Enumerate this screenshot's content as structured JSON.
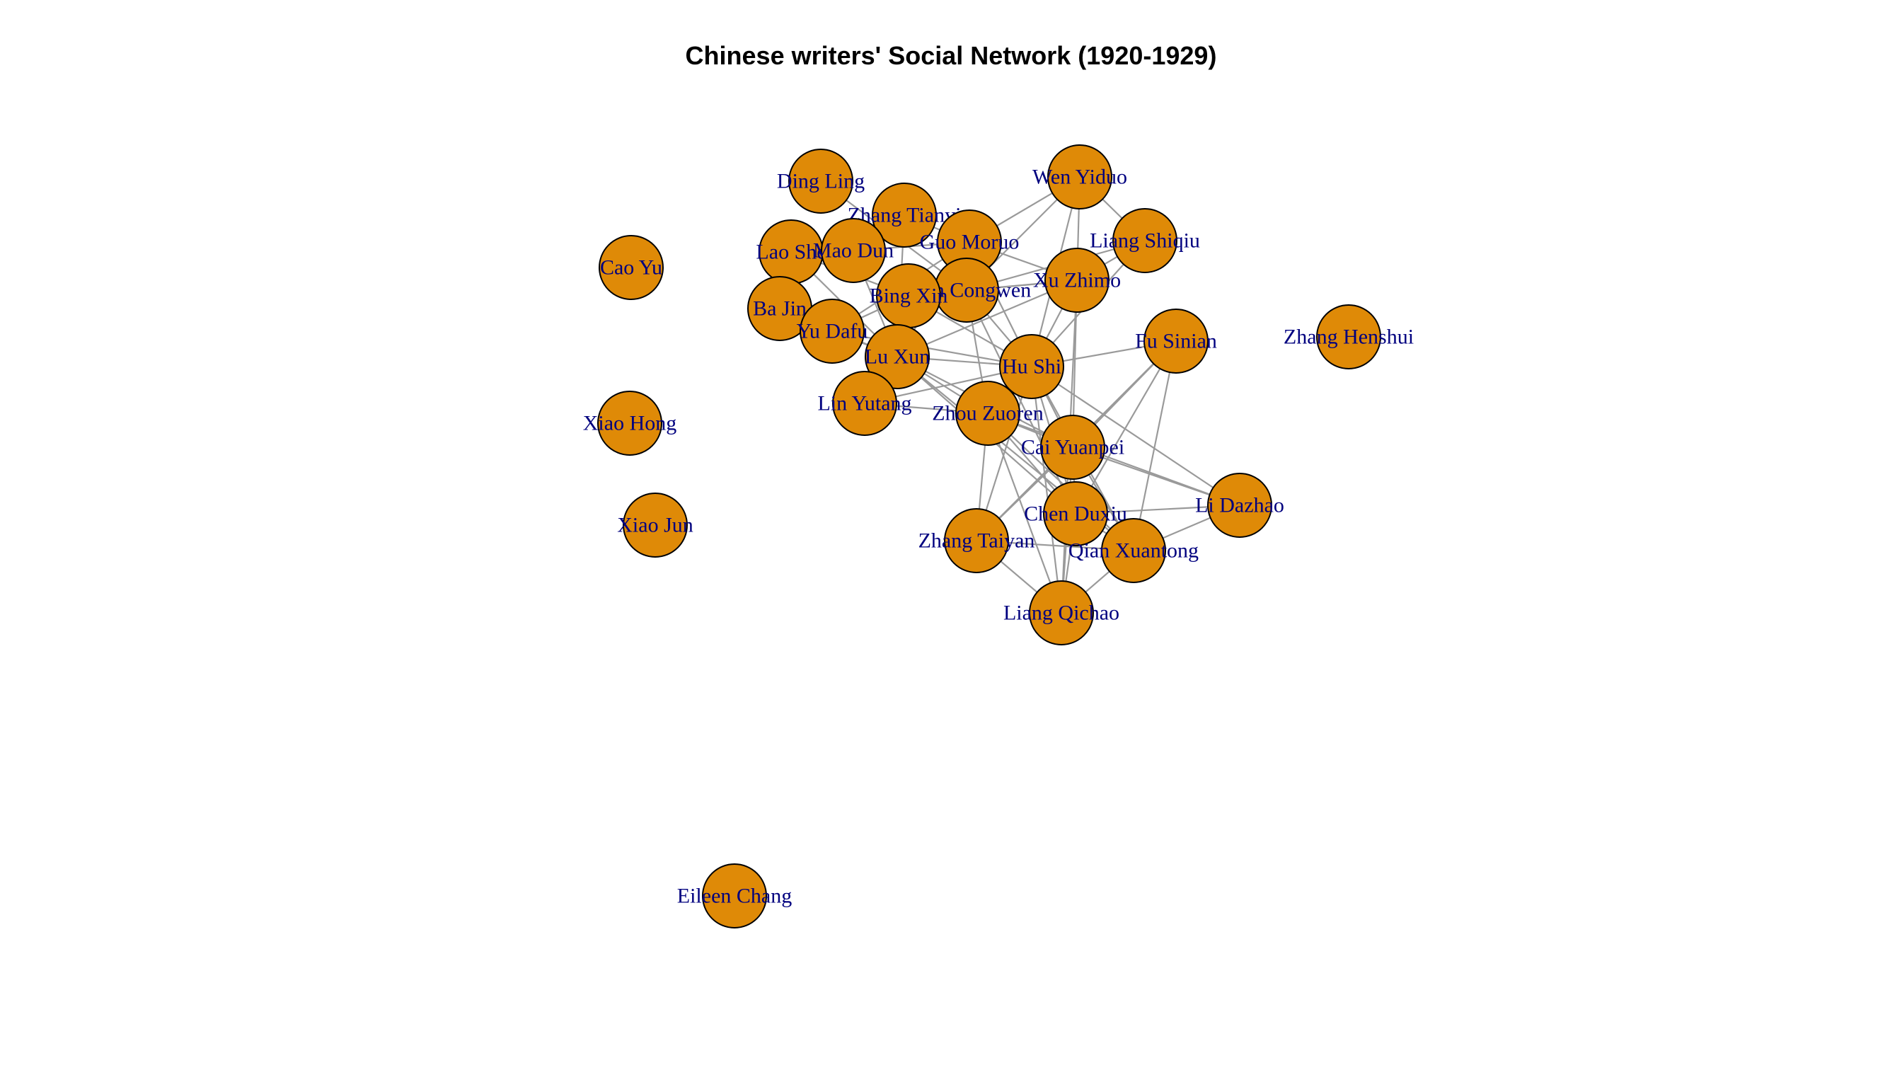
{
  "title": "Chinese writers' Social Network (1920-1929)",
  "colors": {
    "node_fill": "#DF8A07",
    "node_stroke": "#000000",
    "label": "#00007F",
    "edge": "#9A9A9A",
    "background": "#FFFFFF"
  },
  "nodes": [
    {
      "id": "ding_ling",
      "label": "Ding Ling"
    },
    {
      "id": "zhang_tianyi",
      "label": "Zhang Tianyi"
    },
    {
      "id": "wen_yiduo",
      "label": "Wen Yiduo"
    },
    {
      "id": "liang_shiqiu",
      "label": "Liang Shiqiu"
    },
    {
      "id": "guo_moruo",
      "label": "Guo Moruo"
    },
    {
      "id": "lao_she",
      "label": "Lao She"
    },
    {
      "id": "mao_dun",
      "label": "Mao Dun"
    },
    {
      "id": "cao_yu",
      "label": "Cao Yu"
    },
    {
      "id": "xu_zhimo",
      "label": "Xu Zhimo"
    },
    {
      "id": "shen_congwen",
      "label": "Shen Congwen"
    },
    {
      "id": "bing_xin",
      "label": "Bing Xin"
    },
    {
      "id": "ba_jin",
      "label": "Ba Jin"
    },
    {
      "id": "yu_dafu",
      "label": "Yu Dafu"
    },
    {
      "id": "lu_xun",
      "label": "Lu Xun"
    },
    {
      "id": "hu_shi",
      "label": "Hu Shi"
    },
    {
      "id": "fu_sinian",
      "label": "Fu Sinian"
    },
    {
      "id": "zhang_henshui",
      "label": "Zhang Henshui"
    },
    {
      "id": "lin_yutang",
      "label": "Lin Yutang"
    },
    {
      "id": "zhou_zuoren",
      "label": "Zhou Zuoren"
    },
    {
      "id": "xiao_hong",
      "label": "Xiao Hong"
    },
    {
      "id": "cai_yuanpei",
      "label": "Cai Yuanpei"
    },
    {
      "id": "li_dazhao",
      "label": "Li Dazhao"
    },
    {
      "id": "chen_duxiu",
      "label": "Chen Duxiu"
    },
    {
      "id": "xiao_jun",
      "label": "Xiao Jun"
    },
    {
      "id": "zhang_taiyan",
      "label": "Zhang Taiyan"
    },
    {
      "id": "qian_xuantong",
      "label": "Qian Xuantong"
    },
    {
      "id": "liang_qichao",
      "label": "Liang Qichao"
    },
    {
      "id": "eileen_chang",
      "label": "Eileen Chang"
    }
  ],
  "edges": [
    [
      "hu_shi",
      "cai_yuanpei"
    ],
    [
      "hu_shi",
      "chen_duxiu"
    ],
    [
      "hu_shi",
      "li_dazhao"
    ],
    [
      "hu_shi",
      "qian_xuantong"
    ],
    [
      "hu_shi",
      "liang_qichao"
    ],
    [
      "hu_shi",
      "zhou_zuoren"
    ],
    [
      "hu_shi",
      "lu_xun"
    ],
    [
      "hu_shi",
      "xu_zhimo"
    ],
    [
      "hu_shi",
      "fu_sinian"
    ],
    [
      "hu_shi",
      "liang_shiqiu"
    ],
    [
      "hu_shi",
      "wen_yiduo"
    ],
    [
      "hu_shi",
      "shen_congwen"
    ],
    [
      "hu_shi",
      "lin_yutang"
    ],
    [
      "hu_shi",
      "guo_moruo"
    ],
    [
      "hu_shi",
      "zhang_taiyan"
    ],
    [
      "hu_shi",
      "bing_xin"
    ],
    [
      "hu_shi",
      "yu_dafu"
    ],
    [
      "cai_yuanpei",
      "chen_duxiu"
    ],
    [
      "cai_yuanpei",
      "li_dazhao"
    ],
    [
      "cai_yuanpei",
      "lu_xun"
    ],
    [
      "cai_yuanpei",
      "zhou_zuoren"
    ],
    [
      "cai_yuanpei",
      "liang_qichao"
    ],
    [
      "cai_yuanpei",
      "zhang_taiyan"
    ],
    [
      "cai_yuanpei",
      "fu_sinian"
    ],
    [
      "cai_yuanpei",
      "qian_xuantong"
    ],
    [
      "cai_yuanpei",
      "xu_zhimo"
    ],
    [
      "chen_duxiu",
      "li_dazhao"
    ],
    [
      "chen_duxiu",
      "lu_xun"
    ],
    [
      "chen_duxiu",
      "zhou_zuoren"
    ],
    [
      "chen_duxiu",
      "qian_xuantong"
    ],
    [
      "chen_duxiu",
      "fu_sinian"
    ],
    [
      "chen_duxiu",
      "liang_qichao"
    ],
    [
      "chen_duxiu",
      "shen_congwen"
    ],
    [
      "lu_xun",
      "zhou_zuoren"
    ],
    [
      "lu_xun",
      "qian_xuantong"
    ],
    [
      "lu_xun",
      "yu_dafu"
    ],
    [
      "lu_xun",
      "guo_moruo"
    ],
    [
      "lu_xun",
      "mao_dun"
    ],
    [
      "lu_xun",
      "lin_yutang"
    ],
    [
      "lu_xun",
      "zhang_tianyi"
    ],
    [
      "lu_xun",
      "ba_jin"
    ],
    [
      "lu_xun",
      "lao_she"
    ],
    [
      "lu_xun",
      "bing_xin"
    ],
    [
      "lu_xun",
      "xu_zhimo"
    ],
    [
      "zhou_zuoren",
      "qian_xuantong"
    ],
    [
      "zhou_zuoren",
      "zhang_taiyan"
    ],
    [
      "zhou_zuoren",
      "shen_congwen"
    ],
    [
      "zhou_zuoren",
      "lin_yutang"
    ],
    [
      "zhou_zuoren",
      "liang_qichao"
    ],
    [
      "xu_zhimo",
      "wen_yiduo"
    ],
    [
      "xu_zhimo",
      "liang_shiqiu"
    ],
    [
      "xu_zhimo",
      "shen_congwen"
    ],
    [
      "xu_zhimo",
      "guo_moruo"
    ],
    [
      "xu_zhimo",
      "liang_qichao"
    ],
    [
      "xu_zhimo",
      "bing_xin"
    ],
    [
      "wen_yiduo",
      "liang_shiqiu"
    ],
    [
      "wen_yiduo",
      "shen_congwen"
    ],
    [
      "wen_yiduo",
      "guo_moruo"
    ],
    [
      "shen_congwen",
      "bing_xin"
    ],
    [
      "shen_congwen",
      "liang_shiqiu"
    ],
    [
      "shen_congwen",
      "ding_ling"
    ],
    [
      "guo_moruo",
      "yu_dafu"
    ],
    [
      "guo_moruo",
      "mao_dun"
    ],
    [
      "guo_moruo",
      "zhang_tianyi"
    ],
    [
      "bing_xin",
      "lao_she"
    ],
    [
      "bing_xin",
      "yu_dafu"
    ],
    [
      "zhang_taiyan",
      "liang_qichao"
    ],
    [
      "zhang_taiyan",
      "fu_sinian"
    ],
    [
      "zhang_taiyan",
      "qian_xuantong"
    ],
    [
      "li_dazhao",
      "qian_xuantong"
    ],
    [
      "li_dazhao",
      "zhou_zuoren"
    ],
    [
      "fu_sinian",
      "qian_xuantong"
    ],
    [
      "liang_qichao",
      "qian_xuantong"
    ],
    [
      "yu_dafu",
      "ba_jin"
    ]
  ]
}
